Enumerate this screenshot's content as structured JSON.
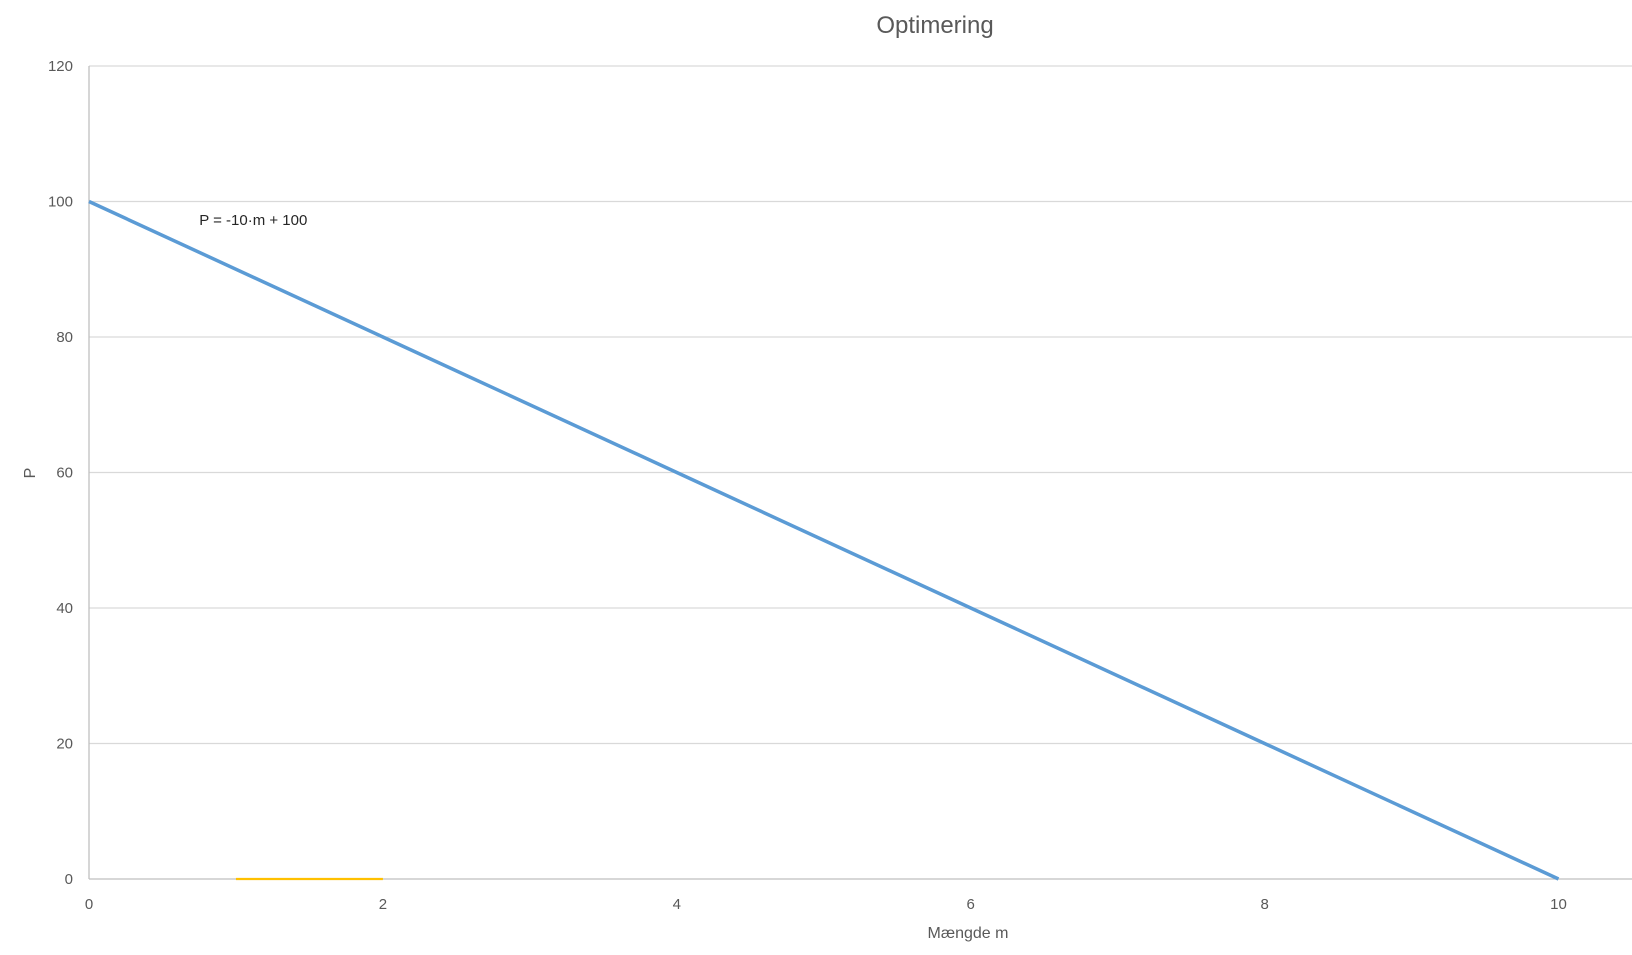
{
  "chart_data": {
    "type": "line",
    "title": "Optimering",
    "xlabel": "Mængde m",
    "ylabel": "P",
    "xlim": [
      0,
      10.5
    ],
    "ylim": [
      0,
      120
    ],
    "x_ticks": [
      0,
      2,
      4,
      6,
      8,
      10
    ],
    "y_ticks": [
      0,
      20,
      40,
      60,
      80,
      100,
      120
    ],
    "grid": "horizontal",
    "legend": "none",
    "series": [
      {
        "name": "P = -10·m + 100",
        "color": "#5b9bd5",
        "x": [
          0,
          2,
          4,
          6,
          8,
          10
        ],
        "y": [
          100,
          80,
          60,
          40,
          20,
          0
        ]
      },
      {
        "name": "",
        "color": "#ffc000",
        "x": [
          1,
          2
        ],
        "y": [
          0,
          0
        ]
      }
    ],
    "annotations": [
      {
        "text": "P = -10·m + 100",
        "x": 0.75,
        "y": 96.5
      }
    ]
  }
}
